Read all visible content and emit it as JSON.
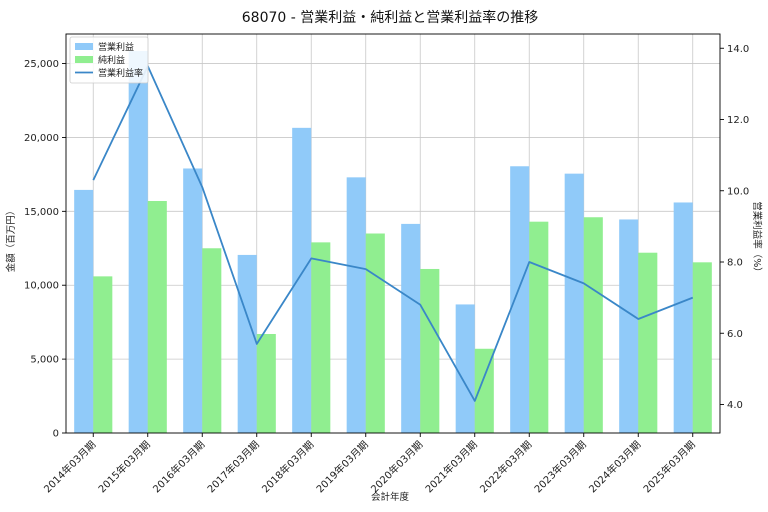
{
  "chart_data": {
    "type": "bar",
    "title": "68070 - 営業利益・純利益と営業利益率の推移",
    "xlabel": "会計年度",
    "ylabel": "金額（百万円）",
    "y2label": "営業利益率（%）",
    "categories": [
      "2014年03月期",
      "2015年03月期",
      "2016年03月期",
      "2017年03月期",
      "2018年03月期",
      "2019年03月期",
      "2020年03月期",
      "2021年03月期",
      "2022年03月期",
      "2023年03月期",
      "2024年03月期",
      "2025年03月期"
    ],
    "series": [
      {
        "name": "営業利益",
        "type": "bar",
        "axis": "left",
        "color": "#90CAF9",
        "values": [
          16450,
          25850,
          17900,
          12050,
          20650,
          17300,
          14150,
          8700,
          18050,
          17550,
          14450,
          15600
        ]
      },
      {
        "name": "純利益",
        "type": "bar",
        "axis": "left",
        "color": "#90EE90",
        "values": [
          10600,
          15700,
          12500,
          6700,
          12900,
          13500,
          11100,
          5700,
          14300,
          14600,
          12200,
          11550
        ]
      },
      {
        "name": "営業利益率",
        "type": "line",
        "axis": "right",
        "color": "#3A87C8",
        "values": [
          10.3,
          13.5,
          10.1,
          5.7,
          8.1,
          7.8,
          6.8,
          4.1,
          8.0,
          7.4,
          6.4,
          7.0
        ]
      }
    ],
    "ylim": [
      0,
      27000
    ],
    "y2lim": [
      3.2,
      14.4
    ],
    "yticks": [
      0,
      5000,
      10000,
      15000,
      20000,
      25000
    ],
    "ytick_labels": [
      "0",
      "5,000",
      "10,000",
      "15,000",
      "20,000",
      "25,000"
    ],
    "y2ticks": [
      4.0,
      6.0,
      8.0,
      10.0,
      12.0,
      14.0
    ],
    "y2tick_labels": [
      "4.0",
      "6.0",
      "8.0",
      "10.0",
      "12.0",
      "14.0"
    ],
    "grid": true,
    "legend_position": "top-left"
  }
}
